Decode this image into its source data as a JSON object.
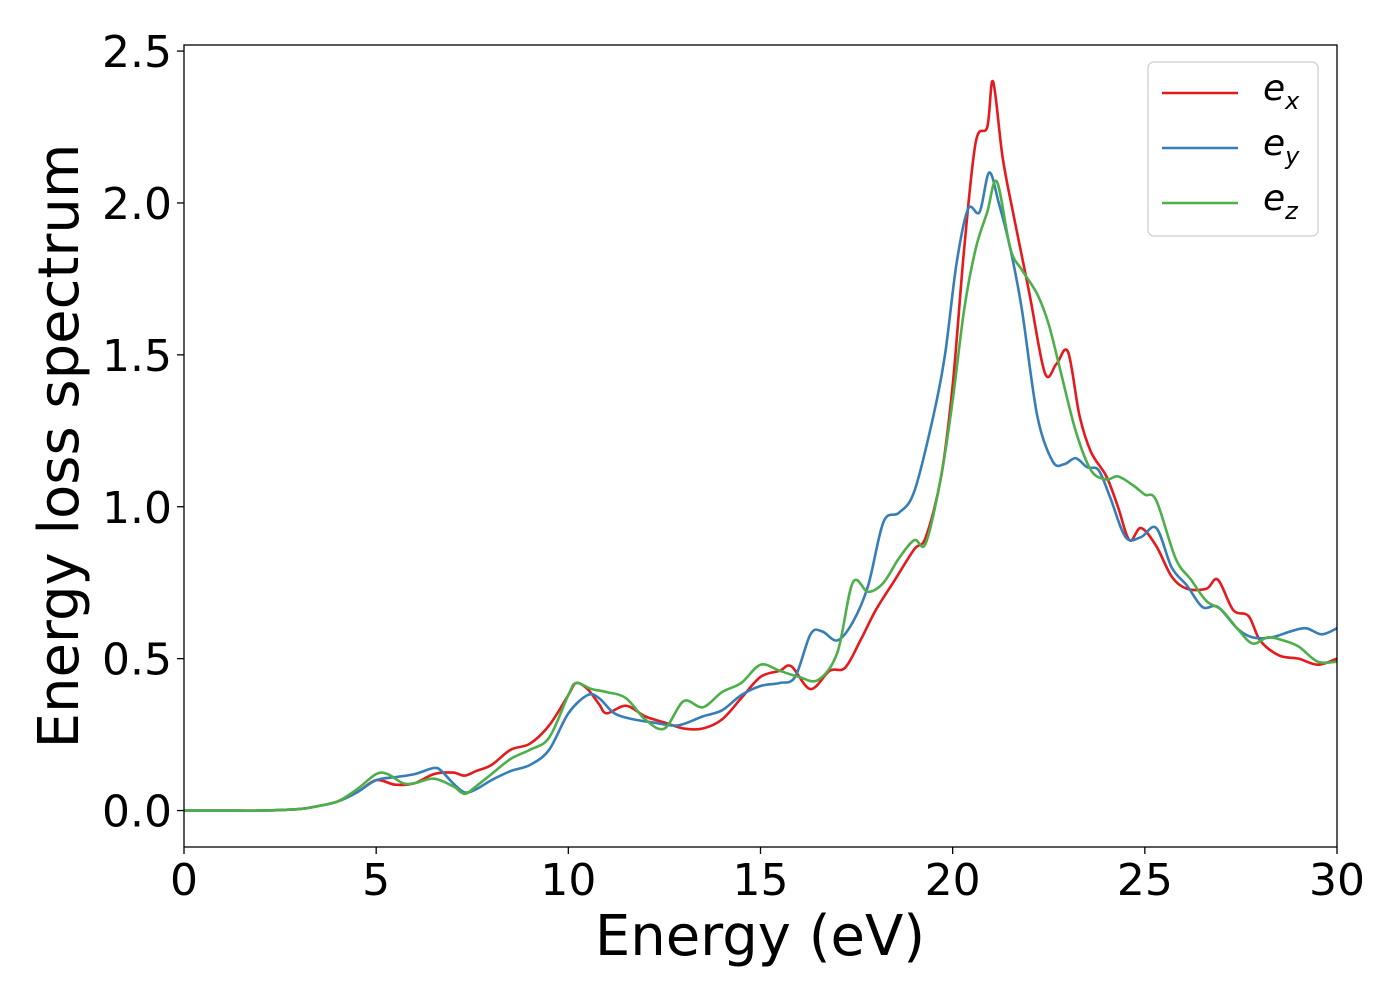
{
  "chart_data": {
    "type": "line",
    "xlabel": "Energy (eV)",
    "ylabel": "Energy loss spectrum",
    "xlim": [
      0,
      30
    ],
    "ylim": [
      -0.12,
      2.52
    ],
    "xticks": [
      0,
      5,
      10,
      15,
      20,
      25,
      30
    ],
    "xtick_labels": [
      "0",
      "5",
      "10",
      "15",
      "20",
      "25",
      "30"
    ],
    "yticks": [
      0.0,
      0.5,
      1.0,
      1.5,
      2.0,
      2.5
    ],
    "ytick_labels": [
      "0.0",
      "0.5",
      "1.0",
      "1.5",
      "2.0",
      "2.5"
    ],
    "grid": false,
    "legend_position": "top-right",
    "series": [
      {
        "name": "e_x",
        "legend_base": "e",
        "legend_sub": "x",
        "color": "#e41a1c",
        "points": [
          [
            0,
            0
          ],
          [
            1,
            0
          ],
          [
            2,
            0
          ],
          [
            3,
            0.005
          ],
          [
            3.5,
            0.015
          ],
          [
            4,
            0.03
          ],
          [
            4.5,
            0.06
          ],
          [
            5,
            0.1
          ],
          [
            5.5,
            0.085
          ],
          [
            6,
            0.09
          ],
          [
            6.5,
            0.12
          ],
          [
            7,
            0.125
          ],
          [
            7.3,
            0.115
          ],
          [
            7.6,
            0.13
          ],
          [
            8,
            0.15
          ],
          [
            8.5,
            0.2
          ],
          [
            9,
            0.22
          ],
          [
            9.5,
            0.28
          ],
          [
            10,
            0.38
          ],
          [
            10.2,
            0.42
          ],
          [
            10.5,
            0.4
          ],
          [
            10.8,
            0.35
          ],
          [
            11,
            0.32
          ],
          [
            11.5,
            0.345
          ],
          [
            12,
            0.31
          ],
          [
            12.5,
            0.29
          ],
          [
            13,
            0.27
          ],
          [
            13.5,
            0.27
          ],
          [
            14,
            0.3
          ],
          [
            14.5,
            0.37
          ],
          [
            15,
            0.44
          ],
          [
            15.5,
            0.46
          ],
          [
            15.8,
            0.475
          ],
          [
            16.3,
            0.4
          ],
          [
            16.8,
            0.46
          ],
          [
            17.2,
            0.47
          ],
          [
            17.6,
            0.56
          ],
          [
            18,
            0.66
          ],
          [
            18.5,
            0.76
          ],
          [
            19,
            0.86
          ],
          [
            19.3,
            0.9
          ],
          [
            19.7,
            1.1
          ],
          [
            20,
            1.4
          ],
          [
            20.3,
            1.85
          ],
          [
            20.6,
            2.2
          ],
          [
            20.9,
            2.25
          ],
          [
            21.05,
            2.4
          ],
          [
            21.3,
            2.15
          ],
          [
            21.6,
            1.95
          ],
          [
            22,
            1.7
          ],
          [
            22.4,
            1.44
          ],
          [
            22.7,
            1.47
          ],
          [
            23,
            1.51
          ],
          [
            23.3,
            1.3
          ],
          [
            23.6,
            1.18
          ],
          [
            24,
            1.1
          ],
          [
            24.3,
            1.0
          ],
          [
            24.6,
            0.89
          ],
          [
            24.9,
            0.93
          ],
          [
            25.3,
            0.87
          ],
          [
            25.7,
            0.77
          ],
          [
            26.1,
            0.73
          ],
          [
            26.6,
            0.73
          ],
          [
            26.9,
            0.76
          ],
          [
            27.3,
            0.66
          ],
          [
            27.7,
            0.64
          ],
          [
            28,
            0.56
          ],
          [
            28.5,
            0.51
          ],
          [
            29,
            0.5
          ],
          [
            29.5,
            0.48
          ],
          [
            30,
            0.5
          ]
        ]
      },
      {
        "name": "e_y",
        "legend_base": "e",
        "legend_sub": "y",
        "color": "#377eb8",
        "points": [
          [
            0,
            0
          ],
          [
            1,
            0
          ],
          [
            2,
            0
          ],
          [
            3,
            0.005
          ],
          [
            3.5,
            0.015
          ],
          [
            4,
            0.03
          ],
          [
            4.5,
            0.06
          ],
          [
            5,
            0.1
          ],
          [
            5.5,
            0.11
          ],
          [
            6,
            0.12
          ],
          [
            6.5,
            0.14
          ],
          [
            6.7,
            0.13
          ],
          [
            7,
            0.09
          ],
          [
            7.3,
            0.06
          ],
          [
            7.6,
            0.07
          ],
          [
            8,
            0.1
          ],
          [
            8.5,
            0.13
          ],
          [
            9,
            0.15
          ],
          [
            9.5,
            0.2
          ],
          [
            10,
            0.32
          ],
          [
            10.5,
            0.38
          ],
          [
            10.8,
            0.37
          ],
          [
            11.2,
            0.32
          ],
          [
            11.7,
            0.3
          ],
          [
            12.2,
            0.29
          ],
          [
            12.7,
            0.28
          ],
          [
            13,
            0.285
          ],
          [
            13.5,
            0.31
          ],
          [
            14,
            0.33
          ],
          [
            14.5,
            0.38
          ],
          [
            15,
            0.41
          ],
          [
            15.5,
            0.42
          ],
          [
            15.9,
            0.44
          ],
          [
            16.3,
            0.58
          ],
          [
            16.6,
            0.59
          ],
          [
            17,
            0.56
          ],
          [
            17.4,
            0.62
          ],
          [
            17.8,
            0.74
          ],
          [
            18.2,
            0.95
          ],
          [
            18.6,
            0.98
          ],
          [
            19,
            1.05
          ],
          [
            19.5,
            1.3
          ],
          [
            19.8,
            1.5
          ],
          [
            20.1,
            1.8
          ],
          [
            20.4,
            1.98
          ],
          [
            20.7,
            1.97
          ],
          [
            20.95,
            2.1
          ],
          [
            21.2,
            2.0
          ],
          [
            21.5,
            1.85
          ],
          [
            21.8,
            1.65
          ],
          [
            22.2,
            1.3
          ],
          [
            22.6,
            1.15
          ],
          [
            22.9,
            1.14
          ],
          [
            23.2,
            1.16
          ],
          [
            23.5,
            1.13
          ],
          [
            23.8,
            1.12
          ],
          [
            24.1,
            1.03
          ],
          [
            24.5,
            0.9
          ],
          [
            24.9,
            0.9
          ],
          [
            25.3,
            0.93
          ],
          [
            25.7,
            0.8
          ],
          [
            26.1,
            0.74
          ],
          [
            26.5,
            0.67
          ],
          [
            26.9,
            0.67
          ],
          [
            27.4,
            0.6
          ],
          [
            27.8,
            0.57
          ],
          [
            28.3,
            0.57
          ],
          [
            28.8,
            0.59
          ],
          [
            29.2,
            0.6
          ],
          [
            29.6,
            0.58
          ],
          [
            30,
            0.6
          ]
        ]
      },
      {
        "name": "e_z",
        "legend_base": "e",
        "legend_sub": "z",
        "color": "#4daf4a",
        "points": [
          [
            0,
            0
          ],
          [
            1,
            0
          ],
          [
            2,
            0
          ],
          [
            3,
            0.005
          ],
          [
            3.5,
            0.015
          ],
          [
            4,
            0.03
          ],
          [
            4.5,
            0.07
          ],
          [
            5,
            0.12
          ],
          [
            5.3,
            0.12
          ],
          [
            5.7,
            0.09
          ],
          [
            6,
            0.09
          ],
          [
            6.5,
            0.105
          ],
          [
            7,
            0.08
          ],
          [
            7.3,
            0.055
          ],
          [
            7.6,
            0.08
          ],
          [
            8,
            0.12
          ],
          [
            8.5,
            0.17
          ],
          [
            9,
            0.2
          ],
          [
            9.5,
            0.24
          ],
          [
            10,
            0.38
          ],
          [
            10.2,
            0.42
          ],
          [
            10.6,
            0.4
          ],
          [
            11,
            0.39
          ],
          [
            11.5,
            0.37
          ],
          [
            12,
            0.3
          ],
          [
            12.5,
            0.27
          ],
          [
            13,
            0.36
          ],
          [
            13.5,
            0.34
          ],
          [
            14,
            0.39
          ],
          [
            14.5,
            0.42
          ],
          [
            15,
            0.48
          ],
          [
            15.5,
            0.46
          ],
          [
            16,
            0.44
          ],
          [
            16.5,
            0.43
          ],
          [
            17,
            0.52
          ],
          [
            17.4,
            0.75
          ],
          [
            17.8,
            0.72
          ],
          [
            18.2,
            0.75
          ],
          [
            18.6,
            0.83
          ],
          [
            19,
            0.89
          ],
          [
            19.3,
            0.88
          ],
          [
            19.7,
            1.1
          ],
          [
            20,
            1.35
          ],
          [
            20.3,
            1.65
          ],
          [
            20.6,
            1.85
          ],
          [
            20.9,
            1.97
          ],
          [
            21.15,
            2.07
          ],
          [
            21.5,
            1.85
          ],
          [
            21.8,
            1.78
          ],
          [
            22.2,
            1.7
          ],
          [
            22.5,
            1.6
          ],
          [
            22.8,
            1.45
          ],
          [
            23.2,
            1.25
          ],
          [
            23.6,
            1.12
          ],
          [
            24,
            1.09
          ],
          [
            24.3,
            1.1
          ],
          [
            24.7,
            1.07
          ],
          [
            25,
            1.04
          ],
          [
            25.3,
            1.02
          ],
          [
            25.8,
            0.83
          ],
          [
            26.2,
            0.76
          ],
          [
            26.6,
            0.69
          ],
          [
            27,
            0.66
          ],
          [
            27.4,
            0.6
          ],
          [
            27.8,
            0.55
          ],
          [
            28.2,
            0.57
          ],
          [
            28.6,
            0.56
          ],
          [
            29,
            0.54
          ],
          [
            29.5,
            0.49
          ],
          [
            30,
            0.49
          ]
        ]
      }
    ]
  }
}
